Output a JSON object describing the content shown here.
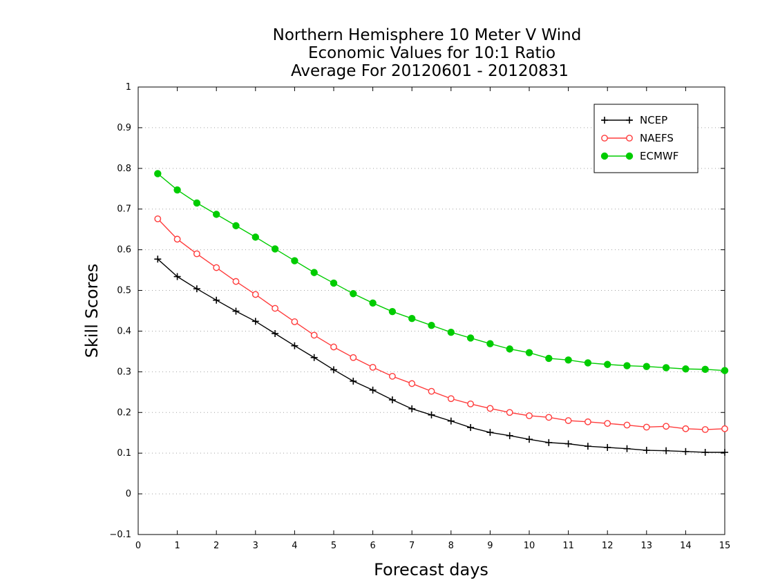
{
  "chart_data": {
    "type": "line",
    "title_lines": [
      "Northern Hemisphere 10 Meter V Wind",
      "Economic Values for 10:1 Ratio",
      "Average For 20120601 - 20120831"
    ],
    "xlabel": "Forecast days",
    "ylabel": "Skill Scores",
    "xlim": [
      0,
      15
    ],
    "ylim": [
      -0.1,
      1
    ],
    "x_ticks": [
      "0",
      "1",
      "2",
      "3",
      "4",
      "5",
      "6",
      "7",
      "8",
      "9",
      "10",
      "11",
      "12",
      "13",
      "14",
      "15"
    ],
    "y_ticks": [
      "−0.1",
      "0",
      "0.1",
      "0.2",
      "0.3",
      "0.4",
      "0.5",
      "0.6",
      "0.7",
      "0.8",
      "0.9",
      "1"
    ],
    "grid": "horizontal dotted",
    "legend_position": "top-right",
    "x": [
      0.5,
      1,
      1.5,
      2,
      2.5,
      3,
      3.5,
      4,
      4.5,
      5,
      5.5,
      6,
      6.5,
      7,
      7.5,
      8,
      8.5,
      9,
      9.5,
      10,
      10.5,
      11,
      11.5,
      12,
      12.5,
      13,
      13.5,
      14,
      14.5,
      15
    ],
    "series": [
      {
        "name": "NCEP",
        "color": "#000000",
        "marker": "plus",
        "values": [
          0.577,
          0.534,
          0.504,
          0.476,
          0.449,
          0.424,
          0.394,
          0.364,
          0.335,
          0.305,
          0.277,
          0.255,
          0.231,
          0.209,
          0.194,
          0.179,
          0.163,
          0.151,
          0.143,
          0.134,
          0.126,
          0.123,
          0.117,
          0.114,
          0.111,
          0.107,
          0.106,
          0.104,
          0.102,
          0.102
        ]
      },
      {
        "name": "NAEFS",
        "color": "#ff3b3b",
        "marker": "open-circle",
        "values": [
          0.676,
          0.626,
          0.59,
          0.556,
          0.522,
          0.49,
          0.456,
          0.423,
          0.39,
          0.361,
          0.335,
          0.311,
          0.289,
          0.271,
          0.252,
          0.234,
          0.221,
          0.21,
          0.2,
          0.192,
          0.188,
          0.18,
          0.177,
          0.173,
          0.169,
          0.164,
          0.166,
          0.16,
          0.158,
          0.16
        ]
      },
      {
        "name": "ECMWF",
        "color": "#00cc00",
        "marker": "filled-circle",
        "values": [
          0.787,
          0.747,
          0.715,
          0.687,
          0.659,
          0.631,
          0.602,
          0.573,
          0.544,
          0.518,
          0.492,
          0.469,
          0.448,
          0.431,
          0.414,
          0.397,
          0.383,
          0.369,
          0.356,
          0.347,
          0.333,
          0.329,
          0.322,
          0.318,
          0.315,
          0.313,
          0.31,
          0.307,
          0.306,
          0.303
        ]
      }
    ]
  }
}
